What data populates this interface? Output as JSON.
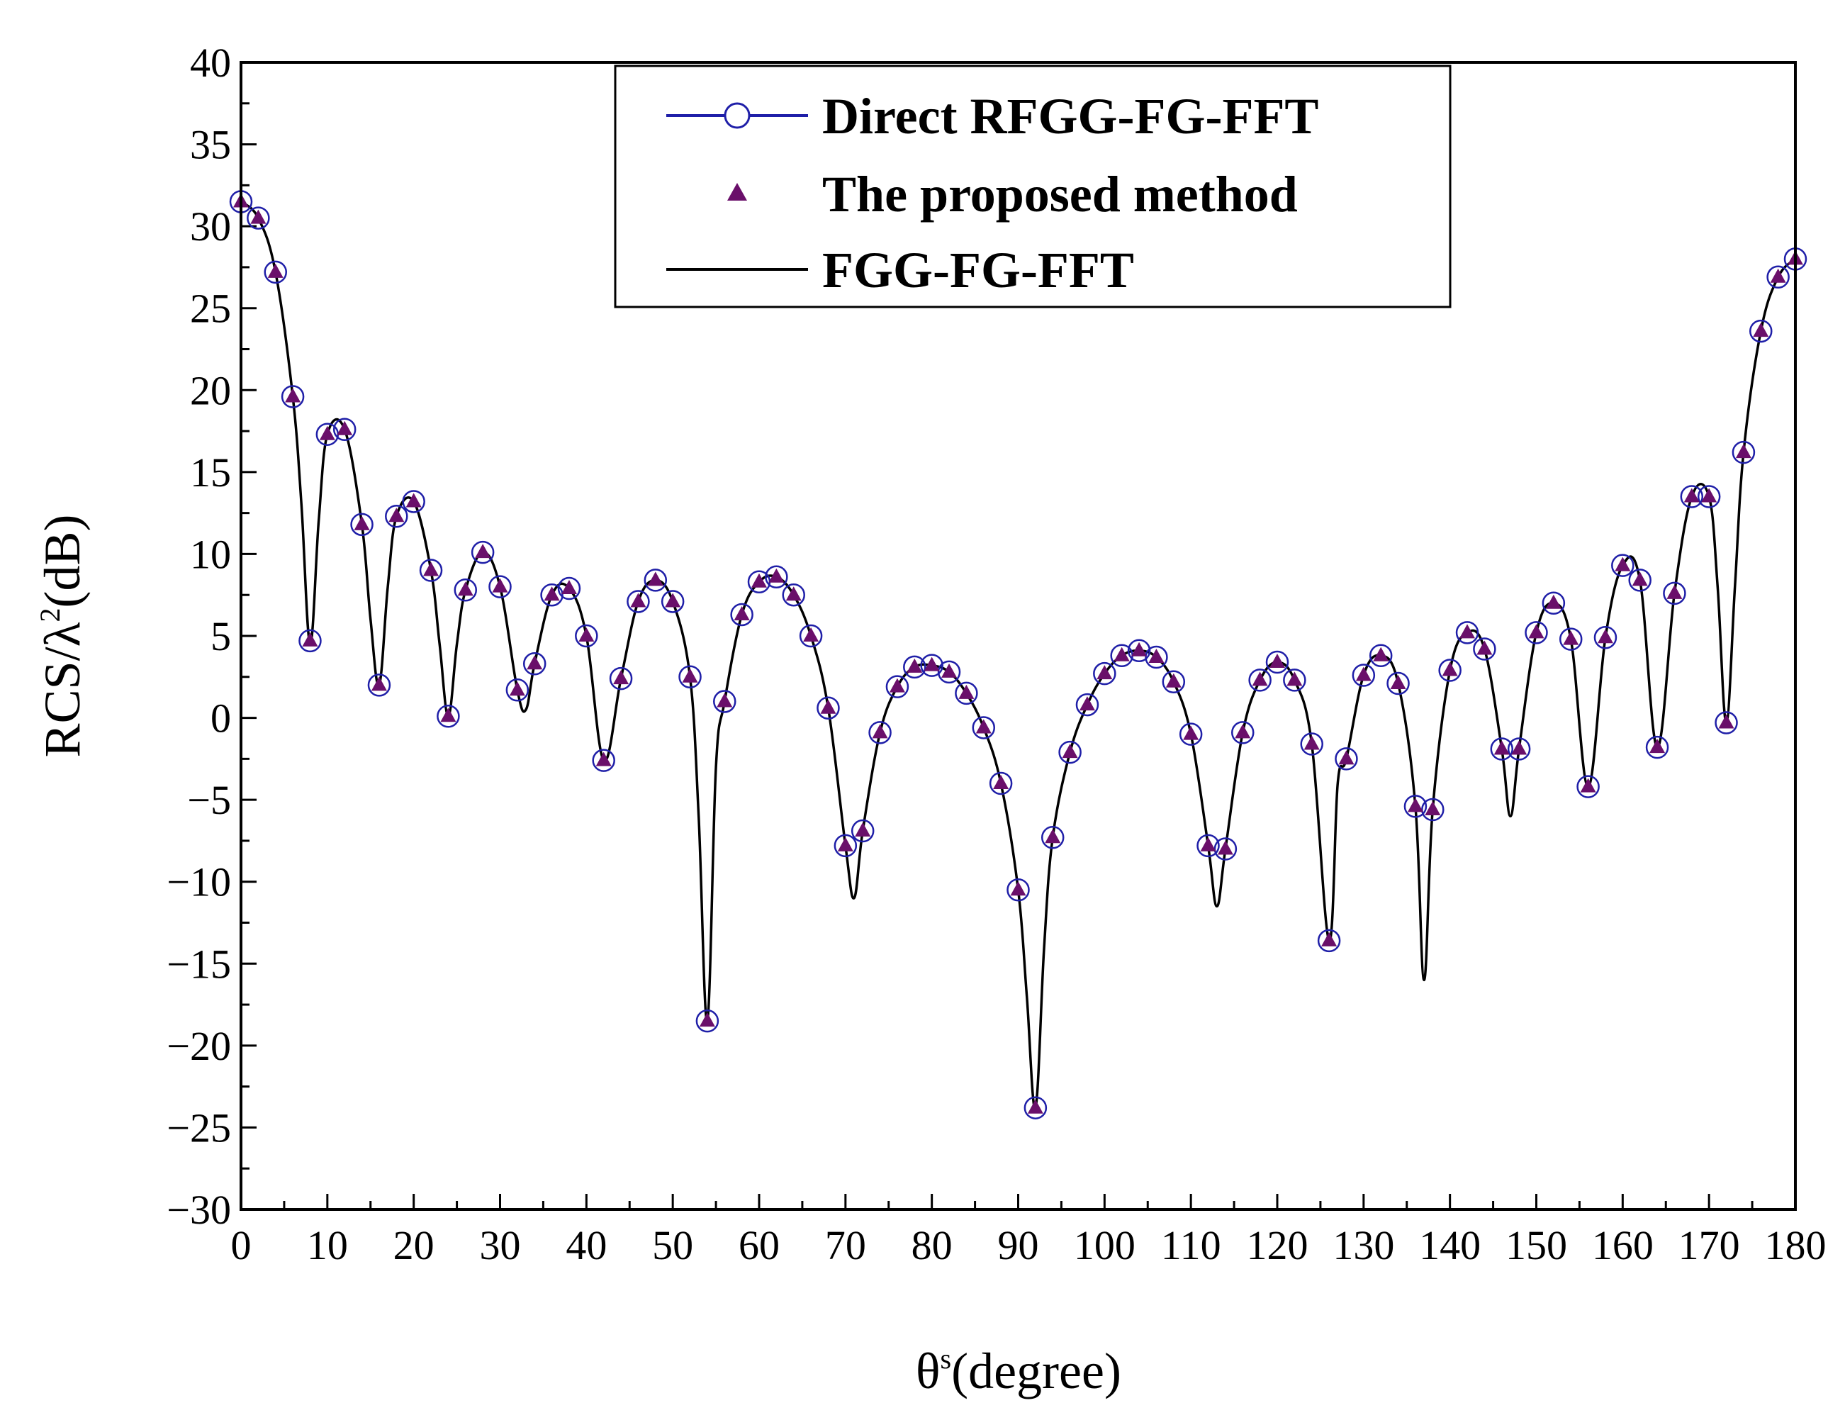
{
  "chart_data": {
    "type": "line",
    "title": "",
    "xlabel_symbol": "θ",
    "xlabel_superscript": "s",
    "xlabel_rest": "(degree)",
    "ylabel_main": "RCS/λ",
    "ylabel_superscript": "2",
    "ylabel_rest": "(dB)",
    "xlim": [
      0,
      180
    ],
    "ylim": [
      -30,
      40
    ],
    "xticks": [
      0,
      10,
      20,
      30,
      40,
      50,
      60,
      70,
      80,
      90,
      100,
      110,
      120,
      130,
      140,
      150,
      160,
      170,
      180
    ],
    "yticks": [
      -30,
      -25,
      -20,
      -15,
      -10,
      -5,
      0,
      5,
      10,
      15,
      20,
      25,
      30,
      35,
      40
    ],
    "ytick_labels": [
      "−30",
      "−25",
      "−20",
      "−15",
      "−10",
      "−5",
      "0",
      "5",
      "10",
      "15",
      "20",
      "25",
      "30",
      "35",
      "40"
    ],
    "legend": [
      {
        "label": "Direct RFGG-FG-FFT",
        "style": "line-circle",
        "color": "#1f1fa8"
      },
      {
        "label": "The proposed method",
        "style": "triangle",
        "color": "#6a0f6a"
      },
      {
        "label": "FGG-FG-FFT",
        "style": "line",
        "color": "#000000"
      }
    ],
    "series": [
      {
        "name": "FGG-FG-FFT",
        "color": "#000000",
        "x": [
          0,
          2,
          4,
          6,
          7,
          8,
          9,
          10,
          12,
          14,
          15,
          16,
          17,
          18,
          20,
          22,
          23,
          24,
          25,
          26,
          28,
          30,
          32,
          33,
          34,
          36,
          38,
          40,
          42,
          44,
          46,
          48,
          50,
          52,
          53,
          54,
          55,
          56,
          58,
          60,
          62,
          64,
          66,
          68,
          70,
          71,
          72,
          74,
          76,
          78,
          80,
          82,
          84,
          86,
          88,
          90,
          91,
          92,
          93,
          94,
          96,
          98,
          100,
          102,
          104,
          106,
          108,
          110,
          112,
          113,
          114,
          116,
          118,
          120,
          122,
          124,
          126,
          127,
          128,
          130,
          132,
          134,
          136,
          137,
          138,
          140,
          142,
          144,
          146,
          147,
          148,
          150,
          152,
          154,
          156,
          158,
          160,
          162,
          164,
          166,
          168,
          170,
          171,
          172,
          173,
          174,
          176,
          178,
          180
        ],
        "y": [
          31.5,
          30.5,
          27.2,
          19.6,
          13,
          4.5,
          12,
          17.3,
          17.6,
          11.8,
          6,
          2,
          8,
          12.3,
          13.2,
          9,
          4.5,
          0.1,
          4.5,
          7.8,
          10.1,
          8,
          1.7,
          0.5,
          3.3,
          7.5,
          7.9,
          5,
          -2.6,
          2.4,
          7.1,
          8.4,
          7.1,
          2.5,
          -6,
          -18.5,
          -3,
          1,
          6.3,
          8.3,
          8.6,
          7.5,
          5,
          0.6,
          -7.8,
          -11,
          -6.9,
          -0.9,
          1.9,
          3.1,
          3.2,
          2.8,
          1.5,
          -0.6,
          -4,
          -10.5,
          -17,
          -23.8,
          -14,
          -7.3,
          -2.1,
          0.8,
          2.7,
          3.8,
          4.1,
          3.7,
          2.2,
          -1,
          -7.8,
          -11.5,
          -8,
          -0.9,
          2.3,
          3.4,
          2.3,
          -1.6,
          -13.6,
          -4,
          -2.5,
          2.6,
          3.8,
          2.1,
          -5.4,
          -16,
          -5.6,
          2.9,
          5.2,
          4.2,
          -1.9,
          -6,
          -1.9,
          5.2,
          7,
          4.8,
          -4.2,
          4.9,
          9.3,
          8.4,
          -1.8,
          7.6,
          13.5,
          13.5,
          8,
          -0.3,
          8,
          16.2,
          23.6,
          26.9,
          28
        ]
      },
      {
        "name": "Direct RFGG-FG-FFT",
        "color": "#1f1fa8",
        "x": [
          0,
          2,
          4,
          6,
          8,
          10,
          12,
          14,
          16,
          18,
          20,
          22,
          24,
          26,
          28,
          30,
          32,
          34,
          36,
          38,
          40,
          42,
          44,
          46,
          48,
          50,
          52,
          54,
          56,
          58,
          60,
          62,
          64,
          66,
          68,
          70,
          72,
          74,
          76,
          78,
          80,
          82,
          84,
          86,
          88,
          90,
          92,
          94,
          96,
          98,
          100,
          102,
          104,
          106,
          108,
          110,
          112,
          114,
          116,
          118,
          120,
          122,
          124,
          126,
          128,
          130,
          132,
          134,
          136,
          138,
          140,
          142,
          144,
          146,
          148,
          150,
          152,
          154,
          156,
          158,
          160,
          162,
          164,
          166,
          168,
          170,
          172,
          174,
          176,
          178,
          180
        ],
        "y": [
          31.5,
          30.5,
          27.2,
          19.6,
          4.7,
          17.3,
          17.6,
          11.8,
          2,
          12.3,
          13.2,
          9,
          0.1,
          7.8,
          10.1,
          8,
          1.7,
          3.3,
          7.5,
          7.9,
          5,
          -2.6,
          2.4,
          7.1,
          8.4,
          7.1,
          2.5,
          -18.5,
          1,
          6.3,
          8.3,
          8.6,
          7.5,
          5,
          0.6,
          -7.8,
          -6.9,
          -0.9,
          1.9,
          3.1,
          3.2,
          2.8,
          1.5,
          -0.6,
          -4,
          -10.5,
          -23.8,
          -7.3,
          -2.1,
          0.8,
          2.7,
          3.8,
          4.1,
          3.7,
          2.2,
          -1,
          -7.8,
          -8,
          -0.9,
          2.3,
          3.4,
          2.3,
          -1.6,
          -13.6,
          -2.5,
          2.6,
          3.8,
          2.1,
          -5.4,
          -5.6,
          2.9,
          5.2,
          4.2,
          -1.9,
          -1.9,
          5.2,
          7,
          4.8,
          -4.2,
          4.9,
          9.3,
          8.4,
          -1.8,
          7.6,
          13.5,
          13.5,
          -0.3,
          16.2,
          23.6,
          26.9,
          28
        ]
      },
      {
        "name": "The proposed method",
        "color": "#6a0f6a",
        "x": [
          0,
          2,
          4,
          6,
          8,
          10,
          12,
          14,
          16,
          18,
          20,
          22,
          24,
          26,
          28,
          30,
          32,
          34,
          36,
          38,
          40,
          42,
          44,
          46,
          48,
          50,
          52,
          54,
          56,
          58,
          60,
          62,
          64,
          66,
          68,
          70,
          72,
          74,
          76,
          78,
          80,
          82,
          84,
          86,
          88,
          90,
          92,
          94,
          96,
          98,
          100,
          102,
          104,
          106,
          108,
          110,
          112,
          114,
          116,
          118,
          120,
          122,
          124,
          126,
          128,
          130,
          132,
          134,
          136,
          138,
          140,
          142,
          144,
          146,
          148,
          150,
          152,
          154,
          156,
          158,
          160,
          162,
          164,
          166,
          168,
          170,
          172,
          174,
          176,
          178,
          180
        ],
        "y": [
          31.5,
          30.5,
          27.2,
          19.6,
          4.7,
          17.3,
          17.6,
          11.8,
          2,
          12.3,
          13.2,
          9,
          0.1,
          7.8,
          10.1,
          8,
          1.7,
          3.3,
          7.5,
          7.9,
          5,
          -2.6,
          2.4,
          7.1,
          8.4,
          7.1,
          2.5,
          -18.5,
          1,
          6.3,
          8.3,
          8.6,
          7.5,
          5,
          0.6,
          -7.8,
          -6.9,
          -0.9,
          1.9,
          3.1,
          3.2,
          2.8,
          1.5,
          -0.6,
          -4,
          -10.5,
          -23.8,
          -7.3,
          -2.1,
          0.8,
          2.7,
          3.8,
          4.1,
          3.7,
          2.2,
          -1,
          -7.8,
          -8,
          -0.9,
          2.3,
          3.4,
          2.3,
          -1.6,
          -13.6,
          -2.5,
          2.6,
          3.8,
          2.1,
          -5.4,
          -5.6,
          2.9,
          5.2,
          4.2,
          -1.9,
          -1.9,
          5.2,
          7,
          4.8,
          -4.2,
          4.9,
          9.3,
          8.4,
          -1.8,
          7.6,
          13.5,
          13.5,
          -0.3,
          16.2,
          23.6,
          26.9,
          28
        ]
      }
    ]
  }
}
